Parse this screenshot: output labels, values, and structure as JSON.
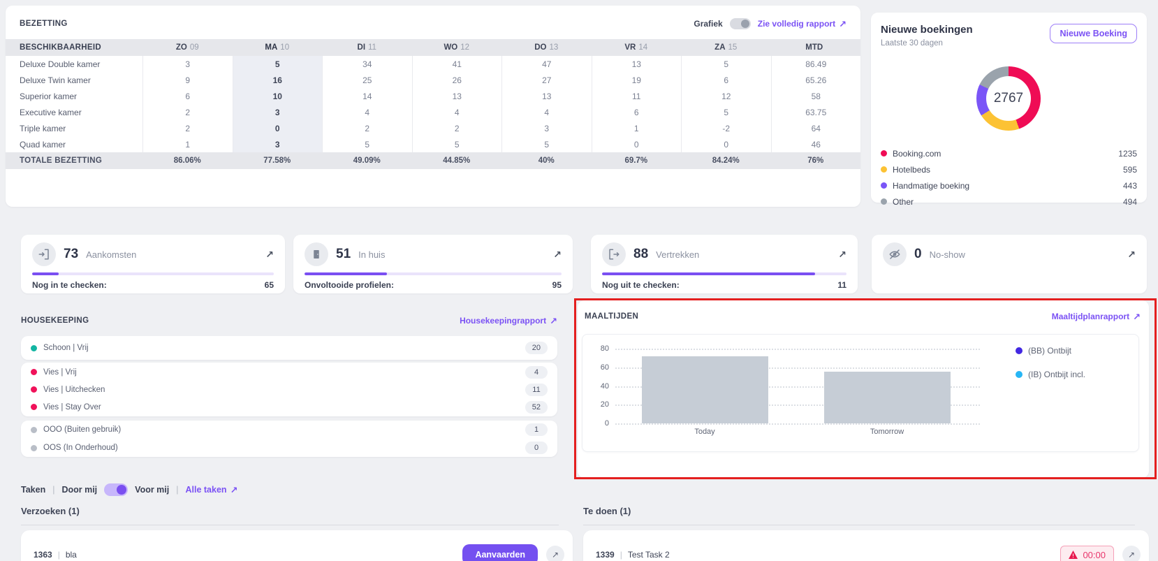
{
  "bezetting": {
    "title": "BEZETTING",
    "grafiek_label": "Grafiek",
    "grafiek_toggle_on": false,
    "report_link": "Zie volledig rapport",
    "table": {
      "first_col": "BESCHIKBAARHEID",
      "days": [
        {
          "day": "ZO",
          "num": "09"
        },
        {
          "day": "MA",
          "num": "10"
        },
        {
          "day": "DI",
          "num": "11"
        },
        {
          "day": "WO",
          "num": "12"
        },
        {
          "day": "DO",
          "num": "13"
        },
        {
          "day": "VR",
          "num": "14"
        },
        {
          "day": "ZA",
          "num": "15"
        },
        {
          "day": "MTD",
          "num": ""
        }
      ],
      "rows": [
        {
          "name": "Deluxe Double kamer",
          "values": [
            "3",
            "5",
            "34",
            "41",
            "47",
            "13",
            "5",
            "86.49"
          ]
        },
        {
          "name": "Deluxe Twin kamer",
          "values": [
            "9",
            "16",
            "25",
            "26",
            "27",
            "19",
            "6",
            "65.26"
          ]
        },
        {
          "name": "Superior kamer",
          "values": [
            "6",
            "10",
            "14",
            "13",
            "13",
            "11",
            "12",
            "58"
          ]
        },
        {
          "name": "Executive kamer",
          "values": [
            "2",
            "3",
            "4",
            "4",
            "4",
            "6",
            "5",
            "63.75"
          ]
        },
        {
          "name": "Triple kamer",
          "values": [
            "2",
            "0",
            "2",
            "2",
            "3",
            "1",
            "-2",
            "64"
          ]
        },
        {
          "name": "Quad kamer",
          "values": [
            "1",
            "3",
            "5",
            "5",
            "5",
            "0",
            "0",
            "46"
          ]
        }
      ],
      "total": {
        "name": "TOTALE BEZETTING",
        "values": [
          "86.06%",
          "77.58%",
          "49.09%",
          "44.85%",
          "40%",
          "69.7%",
          "84.24%",
          "76%"
        ]
      }
    }
  },
  "new_bookings": {
    "title": "Nieuwe boekingen",
    "subtitle": "Laatste 30 dagen",
    "button": "Nieuwe Boeking",
    "total": "2767",
    "sources": [
      {
        "label": "Booking.com",
        "value": 1235,
        "color": "#ef0c55"
      },
      {
        "label": "Hotelbeds",
        "value": 595,
        "color": "#fcc234"
      },
      {
        "label": "Handmatige boeking",
        "value": 443,
        "color": "#7a55f7"
      },
      {
        "label": "Other",
        "value": 494,
        "color": "#9aa3ac"
      }
    ]
  },
  "stats": [
    {
      "value": "73",
      "label": "Aankomsten",
      "icon": "door-in",
      "progress_pct": "11%",
      "footer_label": "Nog in te checken:",
      "footer_value": "65"
    },
    {
      "value": "51",
      "label": "In huis",
      "icon": "in-house",
      "progress_pct": "32%",
      "footer_label": "Onvoltooide profielen:",
      "footer_value": "95"
    },
    {
      "value": "88",
      "label": "Vertrekken",
      "icon": "door-out",
      "progress_pct": "87%",
      "footer_label": "Nog uit te checken:",
      "footer_value": "11"
    },
    {
      "value": "0",
      "label": "No-show",
      "icon": "eye-off",
      "progress_pct": null,
      "footer_label": null,
      "footer_value": null
    }
  ],
  "housekeeping": {
    "title": "HOUSEKEEPING",
    "report_link": "Housekeepingrapport",
    "groups": [
      {
        "rows": [
          {
            "label": "Schoon | Vrij",
            "count": "20",
            "color": "#12b5a2"
          }
        ]
      },
      {
        "rows": [
          {
            "label": "Vies | Vrij",
            "count": "4",
            "color": "#f0125a"
          },
          {
            "label": "Vies | Uitchecken",
            "count": "11",
            "color": "#f0125a"
          },
          {
            "label": "Vies | Stay Over",
            "count": "52",
            "color": "#f0125a"
          }
        ]
      },
      {
        "rows": [
          {
            "label": "OOO (Buiten gebruik)",
            "count": "1",
            "color": "#b9bec7"
          },
          {
            "label": "OOS (In Onderhoud)",
            "count": "0",
            "color": "#b9bec7"
          }
        ]
      }
    ]
  },
  "meals": {
    "title": "MAALTIJDEN",
    "report_link": "Maaltijdplanrapport",
    "chart_data": {
      "type": "bar",
      "categories": [
        "Today",
        "Tomorrow"
      ],
      "values": [
        72,
        55
      ],
      "title": "",
      "xlabel": "",
      "ylabel": "",
      "ylim": [
        0,
        80
      ],
      "yticks": [
        80,
        60,
        40,
        20,
        0
      ],
      "grid": "dotted-horizontal",
      "bar_color": "#c6cdd6",
      "legend_position": "right",
      "legend": [
        {
          "label": "(BB) Ontbijt",
          "color": "#4228e2"
        },
        {
          "label": "(IB) Ontbijt incl.",
          "color": "#27b6f5"
        }
      ]
    }
  },
  "tasks_bar": {
    "label": "Taken",
    "sep": "|",
    "door_mij": "Door mij",
    "voor_mij": "Voor mij",
    "alle_taken": "Alle taken",
    "toggle_on": true
  },
  "requests": {
    "title": "Verzoeken (1)",
    "sep": "|",
    "items": [
      {
        "id": "1363",
        "text": "bla",
        "action": "Aanvaarden"
      }
    ]
  },
  "todos": {
    "title": "Te doen (1)",
    "sep": "|",
    "items": [
      {
        "id": "1339",
        "text": "Test Task 2",
        "badge": "00:00"
      }
    ]
  },
  "annotation": {
    "color": "#e41f1f"
  },
  "accent_color": "#7b52f4"
}
